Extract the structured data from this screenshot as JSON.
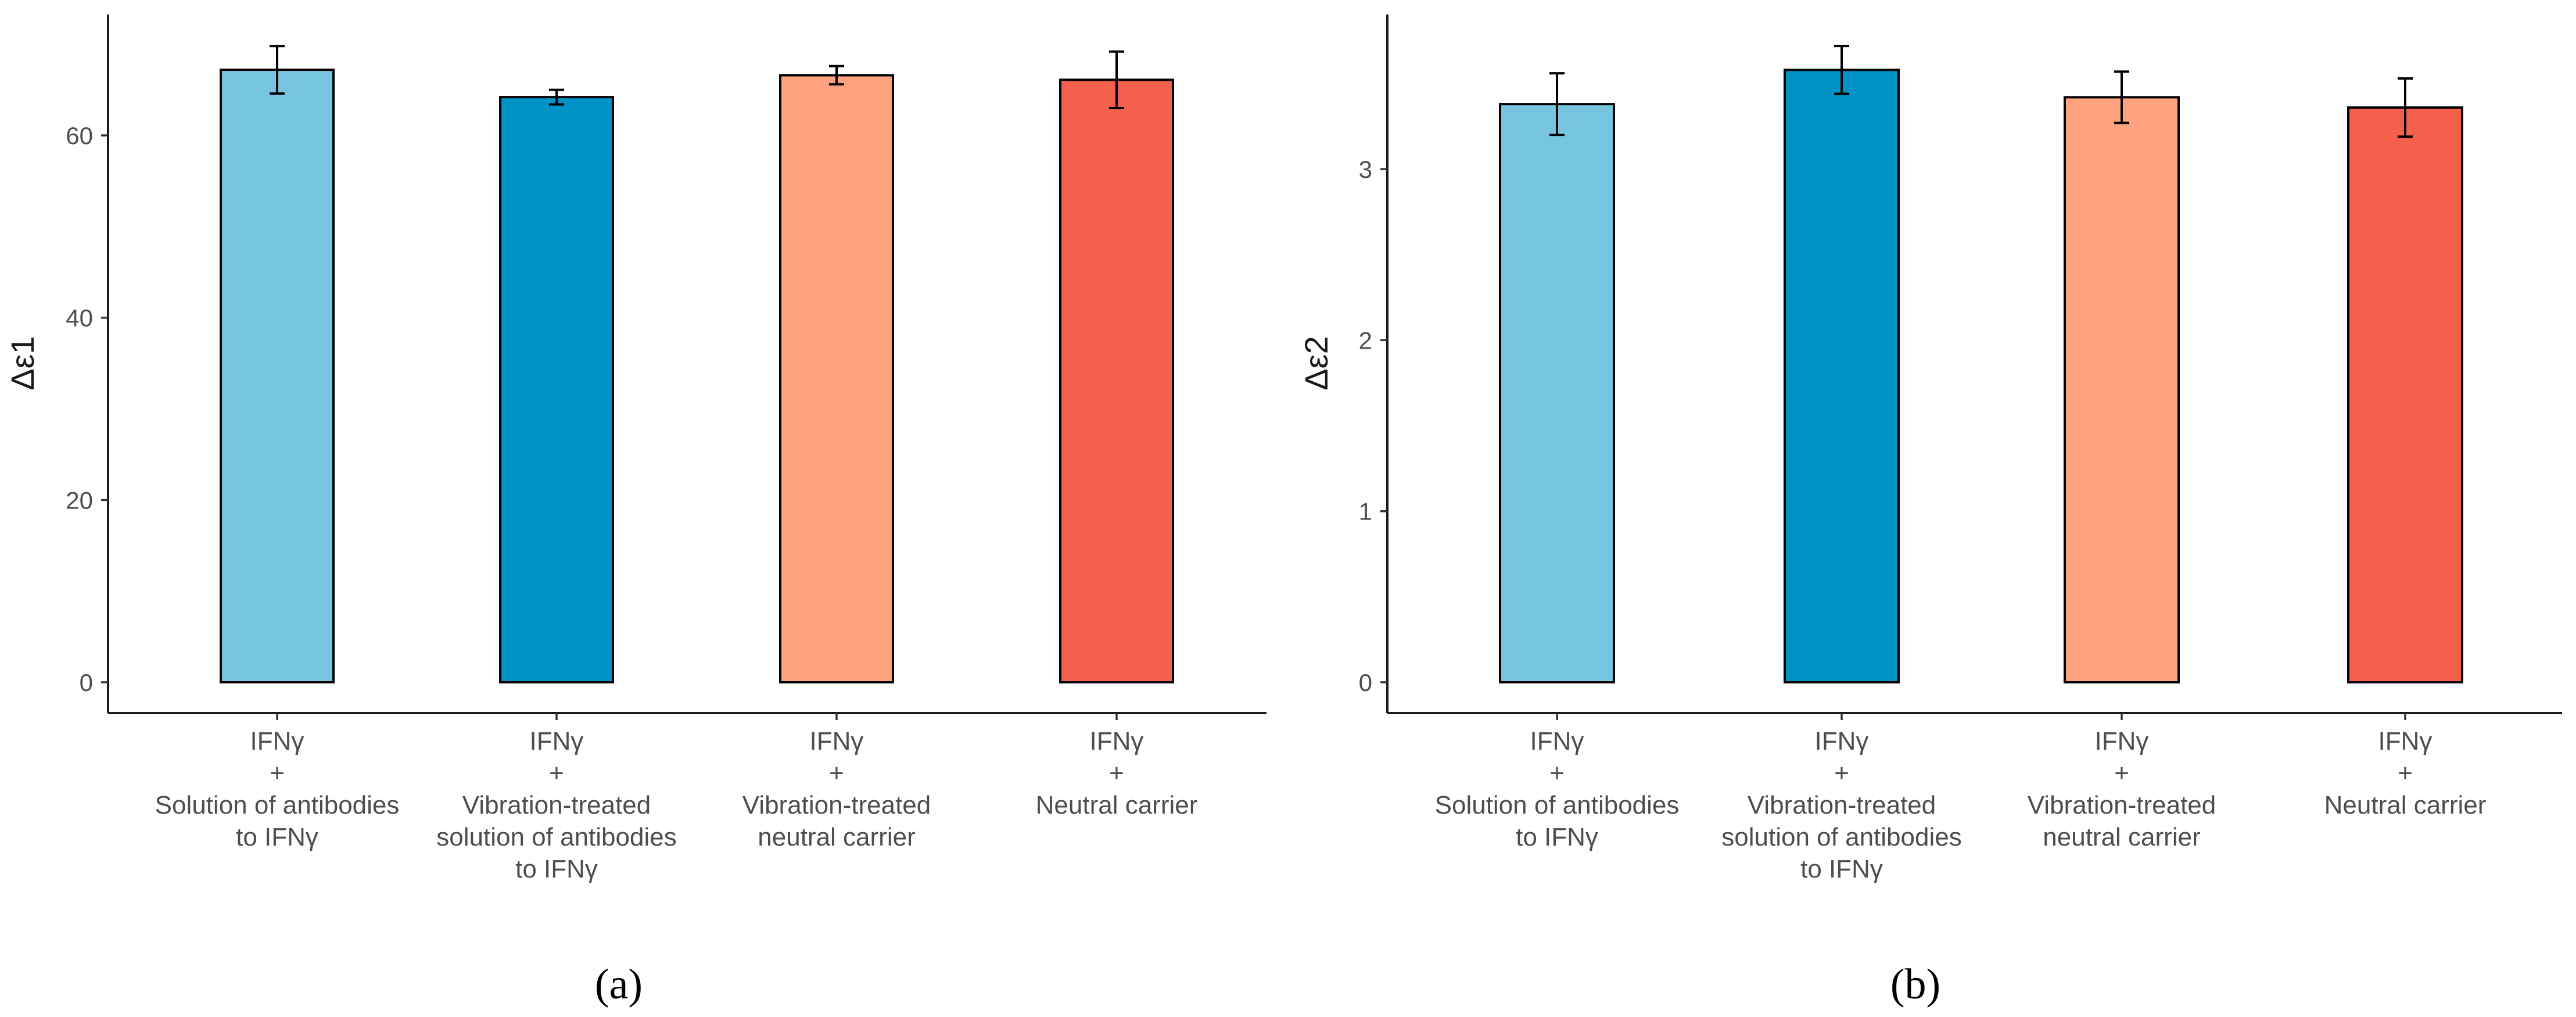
{
  "chart_data": [
    {
      "type": "bar",
      "panel_label": "(a)",
      "ylabel": "Δε1",
      "ylim": [
        0,
        70
      ],
      "yticks": [
        0,
        20,
        40,
        60
      ],
      "categories": [
        [
          "IFNγ",
          "+",
          "Solution of antibodies",
          "to IFNγ"
        ],
        [
          "IFNγ",
          "+",
          "Vibration-treated",
          "solution of antibodies",
          "to IFNγ"
        ],
        [
          "IFNγ",
          "+",
          "Vibration-treated",
          "neutral carrier"
        ],
        [
          "IFNγ",
          "+",
          "Neutral carrier"
        ]
      ],
      "values": [
        67.2,
        64.2,
        66.6,
        66.1
      ],
      "errors": [
        2.6,
        0.8,
        1.0,
        3.1
      ],
      "colors": [
        "#78c5e0",
        "#0093c8",
        "#ffa27e",
        "#f5604c"
      ],
      "grid": false,
      "legend": "none"
    },
    {
      "type": "bar",
      "panel_label": "(b)",
      "ylabel": "Δε2",
      "ylim": [
        0,
        3.75
      ],
      "yticks": [
        0,
        1,
        2,
        3
      ],
      "categories": [
        [
          "IFNγ",
          "+",
          "Solution of antibodies",
          "to IFNγ"
        ],
        [
          "IFNγ",
          "+",
          "Vibration-treated",
          "solution of antibodies",
          "to IFNγ"
        ],
        [
          "IFNγ",
          "+",
          "Vibration-treated",
          "neutral carrier"
        ],
        [
          "IFNγ",
          "+",
          "Neutral carrier"
        ]
      ],
      "values": [
        3.38,
        3.58,
        3.42,
        3.36
      ],
      "errors": [
        0.18,
        0.14,
        0.15,
        0.17
      ],
      "colors": [
        "#78c5e0",
        "#0093c8",
        "#ffa27e",
        "#f5604c"
      ],
      "grid": false,
      "legend": "none"
    }
  ]
}
